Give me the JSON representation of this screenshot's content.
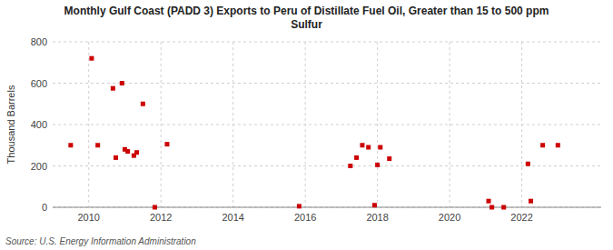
{
  "chart_data": {
    "type": "scatter",
    "title": "Monthly Gulf Coast (PADD 3) Exports to Peru of Distillate Fuel Oil, Greater than 15 to 500 ppm",
    "subtitle": "Sulfur",
    "y_label": "Thousand Barrels",
    "annotations": [
      "Source: U.S. Energy Information Administration"
    ],
    "color": "#cc0000",
    "marker": "square",
    "grid": true,
    "xlim": [
      2009.0,
      2024.2
    ],
    "ylim": [
      0,
      800
    ],
    "xticks": [
      2010,
      2012,
      2014,
      2016,
      2018,
      2020,
      2022
    ],
    "yticks": [
      0,
      200,
      400,
      600,
      800
    ],
    "x": [
      2009.5,
      2010.08,
      2010.25,
      2010.67,
      2010.75,
      2010.92,
      2011.0,
      2011.08,
      2011.25,
      2011.33,
      2011.5,
      2011.83,
      2012.17,
      2015.83,
      2017.25,
      2017.42,
      2017.58,
      2017.75,
      2017.92,
      2018.0,
      2018.08,
      2018.33,
      2021.08,
      2021.17,
      2021.5,
      2022.17,
      2022.25,
      2022.58,
      2023.0
    ],
    "values": [
      300,
      720,
      300,
      575,
      240,
      600,
      280,
      270,
      250,
      265,
      500,
      0,
      305,
      5,
      200,
      240,
      300,
      290,
      10,
      205,
      290,
      235,
      30,
      0,
      0,
      210,
      30,
      300,
      300
    ]
  }
}
